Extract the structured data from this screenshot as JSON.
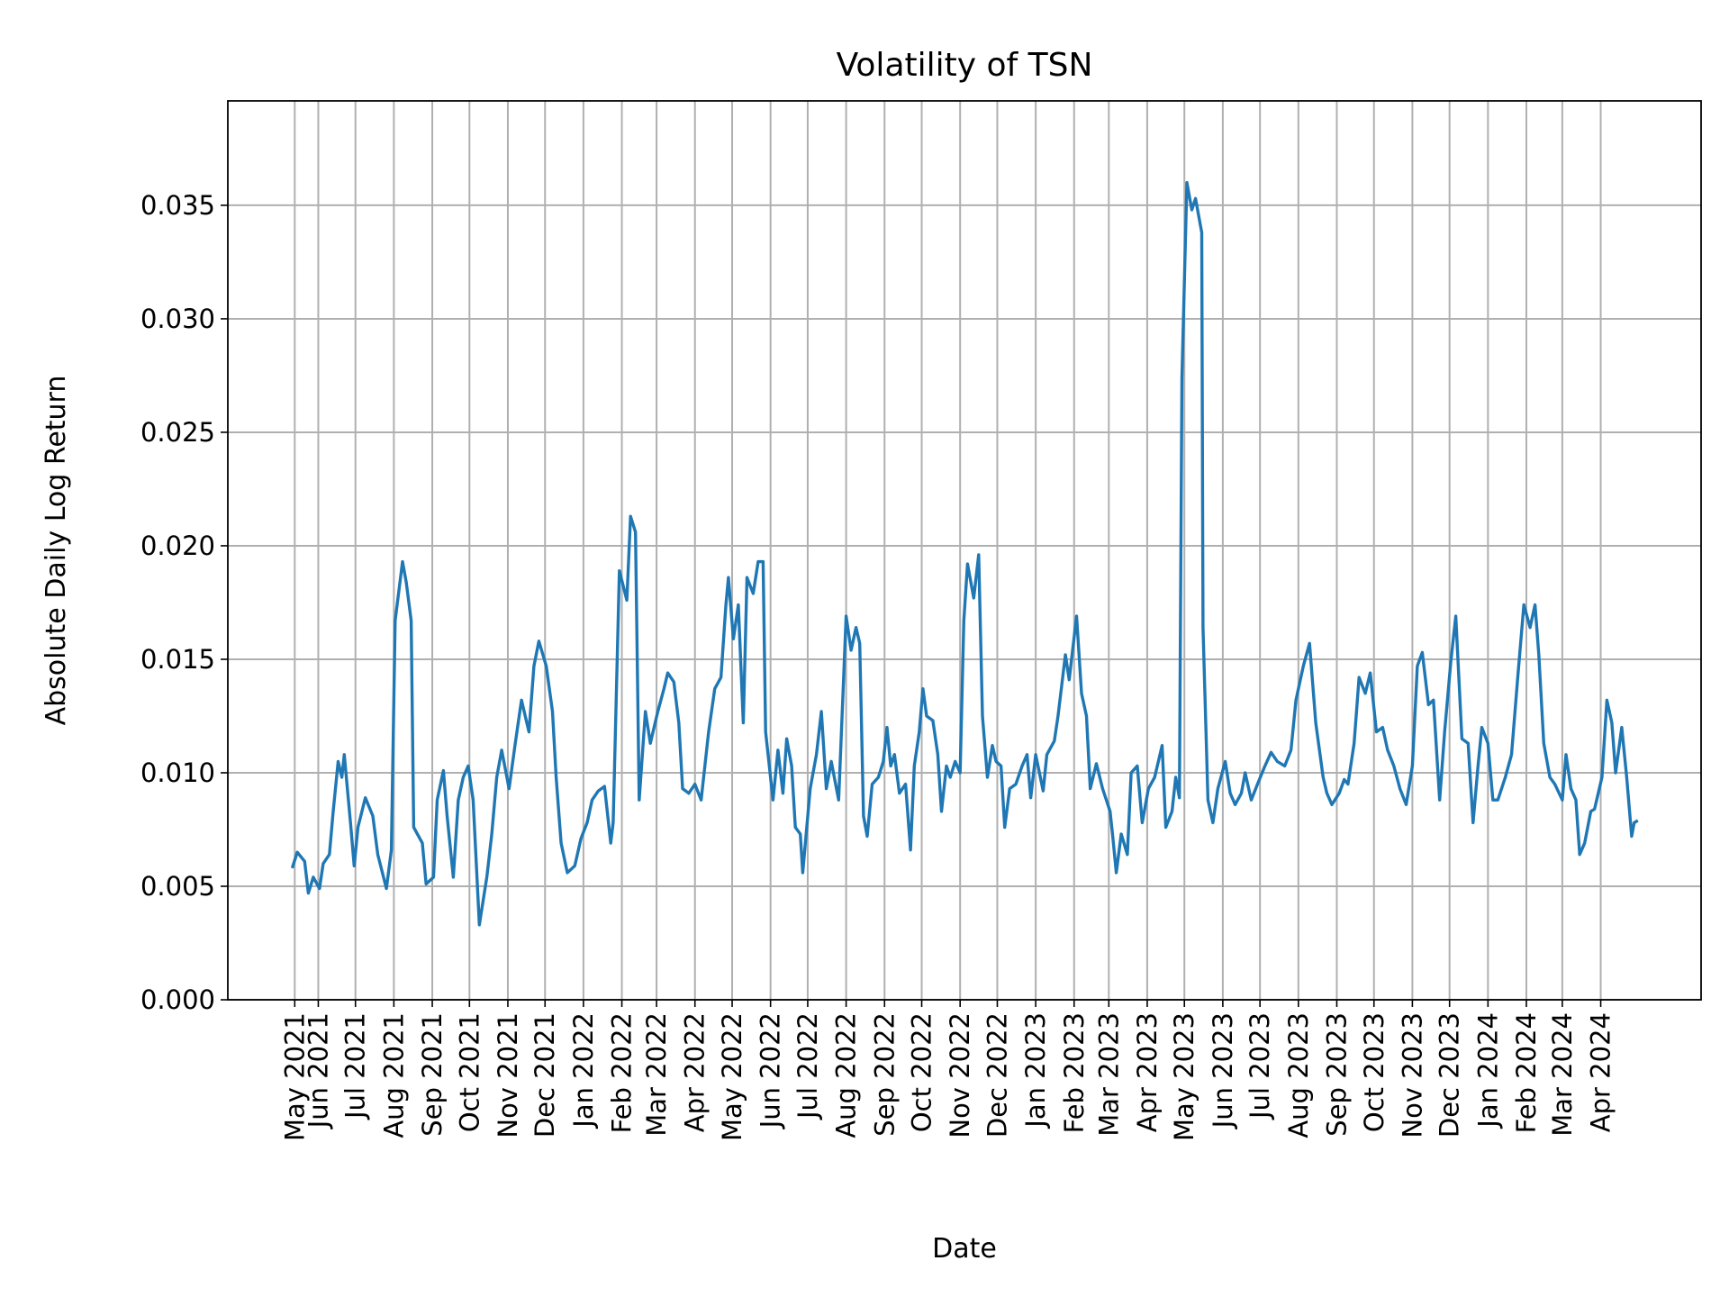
{
  "chart_data": {
    "type": "line",
    "title": "Volatility of TSN",
    "xlabel": "Date",
    "ylabel": "Absolute Daily Log Return",
    "xlim": [
      "2021-03-20",
      "2024-06-21"
    ],
    "ylim": [
      0,
      0.0396
    ],
    "grid": true,
    "line_color": "#1f77b4",
    "grid_color": "#b0b0b0",
    "y_ticks": [
      {
        "value": 0.0,
        "label": "0.000"
      },
      {
        "value": 0.005,
        "label": "0.005"
      },
      {
        "value": 0.01,
        "label": "0.010"
      },
      {
        "value": 0.015,
        "label": "0.015"
      },
      {
        "value": 0.02,
        "label": "0.020"
      },
      {
        "value": 0.025,
        "label": "0.025"
      },
      {
        "value": 0.03,
        "label": "0.030"
      },
      {
        "value": 0.035,
        "label": "0.035"
      }
    ],
    "x_ticks": [
      {
        "date": "2021-05-13",
        "label": "May 2021"
      },
      {
        "date": "2021-06-01",
        "label": "Jun 2021"
      },
      {
        "date": "2021-07-01",
        "label": "Jul 2021"
      },
      {
        "date": "2021-08-01",
        "label": "Aug 2021"
      },
      {
        "date": "2021-09-01",
        "label": "Sep 2021"
      },
      {
        "date": "2021-10-01",
        "label": "Oct 2021"
      },
      {
        "date": "2021-11-01",
        "label": "Nov 2021"
      },
      {
        "date": "2021-12-01",
        "label": "Dec 2021"
      },
      {
        "date": "2022-01-01",
        "label": "Jan 2022"
      },
      {
        "date": "2022-02-01",
        "label": "Feb 2022"
      },
      {
        "date": "2022-03-01",
        "label": "Mar 2022"
      },
      {
        "date": "2022-04-01",
        "label": "Apr 2022"
      },
      {
        "date": "2022-05-01",
        "label": "May 2022"
      },
      {
        "date": "2022-06-01",
        "label": "Jun 2022"
      },
      {
        "date": "2022-07-01",
        "label": "Jul 2022"
      },
      {
        "date": "2022-08-01",
        "label": "Aug 2022"
      },
      {
        "date": "2022-09-01",
        "label": "Sep 2022"
      },
      {
        "date": "2022-10-01",
        "label": "Oct 2022"
      },
      {
        "date": "2022-11-01",
        "label": "Nov 2022"
      },
      {
        "date": "2022-12-01",
        "label": "Dec 2022"
      },
      {
        "date": "2023-01-01",
        "label": "Jan 2023"
      },
      {
        "date": "2023-02-01",
        "label": "Feb 2023"
      },
      {
        "date": "2023-03-01",
        "label": "Mar 2023"
      },
      {
        "date": "2023-04-01",
        "label": "Apr 2023"
      },
      {
        "date": "2023-05-01",
        "label": "May 2023"
      },
      {
        "date": "2023-06-01",
        "label": "Jun 2023"
      },
      {
        "date": "2023-07-01",
        "label": "Jul 2023"
      },
      {
        "date": "2023-08-01",
        "label": "Aug 2023"
      },
      {
        "date": "2023-09-01",
        "label": "Sep 2023"
      },
      {
        "date": "2023-10-01",
        "label": "Oct 2023"
      },
      {
        "date": "2023-11-01",
        "label": "Nov 2023"
      },
      {
        "date": "2023-12-01",
        "label": "Dec 2023"
      },
      {
        "date": "2024-01-01",
        "label": "Jan 2024"
      },
      {
        "date": "2024-02-01",
        "label": "Feb 2024"
      },
      {
        "date": "2024-03-01",
        "label": "Mar 2024"
      },
      {
        "date": "2024-04-01",
        "label": "Apr 2024"
      }
    ],
    "series": [
      {
        "x": [
          "2021-05-11",
          "2021-05-15",
          "2021-05-21",
          "2021-05-24",
          "2021-05-28",
          "2021-06-02",
          "2021-06-05",
          "2021-06-10",
          "2021-06-13",
          "2021-06-17",
          "2021-06-20",
          "2021-06-22",
          "2021-06-27",
          "2021-06-30",
          "2021-07-03",
          "2021-07-09",
          "2021-07-15",
          "2021-07-19",
          "2021-07-26",
          "2021-07-30",
          "2021-08-02",
          "2021-08-08",
          "2021-08-11",
          "2021-08-15",
          "2021-08-17",
          "2021-08-24",
          "2021-08-27",
          "2021-09-02",
          "2021-09-05",
          "2021-09-10",
          "2021-09-13",
          "2021-09-18",
          "2021-09-22",
          "2021-09-26",
          "2021-09-30",
          "2021-10-04",
          "2021-10-09",
          "2021-10-15",
          "2021-10-19",
          "2021-10-23",
          "2021-10-27",
          "2021-11-02",
          "2021-11-07",
          "2021-11-12",
          "2021-11-18",
          "2021-11-22",
          "2021-11-26",
          "2021-12-02",
          "2021-12-07",
          "2021-12-10",
          "2021-12-14",
          "2021-12-19",
          "2021-12-25",
          "2021-12-30",
          "2022-01-04",
          "2022-01-08",
          "2022-01-13",
          "2022-01-18",
          "2022-01-23",
          "2022-01-25",
          "2022-01-30",
          "2022-02-05",
          "2022-02-08",
          "2022-02-12",
          "2022-02-15",
          "2022-02-20",
          "2022-02-24",
          "2022-03-02",
          "2022-03-07",
          "2022-03-10",
          "2022-03-15",
          "2022-03-19",
          "2022-03-22",
          "2022-03-27",
          "2022-04-01",
          "2022-04-06",
          "2022-04-12",
          "2022-04-17",
          "2022-04-22",
          "2022-04-26",
          "2022-04-28",
          "2022-05-02",
          "2022-05-06",
          "2022-05-10",
          "2022-05-13",
          "2022-05-18",
          "2022-05-22",
          "2022-05-26",
          "2022-05-28",
          "2022-06-03",
          "2022-06-07",
          "2022-06-11",
          "2022-06-14",
          "2022-06-18",
          "2022-06-21",
          "2022-06-25",
          "2022-06-27",
          "2022-07-03",
          "2022-07-08",
          "2022-07-12",
          "2022-07-16",
          "2022-07-20",
          "2022-07-26",
          "2022-08-01",
          "2022-08-05",
          "2022-08-09",
          "2022-08-12",
          "2022-08-15",
          "2022-08-18",
          "2022-08-22",
          "2022-08-27",
          "2022-08-31",
          "2022-09-03",
          "2022-09-06",
          "2022-09-09",
          "2022-09-13",
          "2022-09-18",
          "2022-09-22",
          "2022-09-25",
          "2022-09-29",
          "2022-10-02",
          "2022-10-05",
          "2022-10-10",
          "2022-10-14",
          "2022-10-17",
          "2022-10-21",
          "2022-10-24",
          "2022-10-28",
          "2022-11-01",
          "2022-11-04",
          "2022-11-07",
          "2022-11-12",
          "2022-11-16",
          "2022-11-19",
          "2022-11-23",
          "2022-11-27",
          "2022-11-30",
          "2022-12-04",
          "2022-12-07",
          "2022-12-11",
          "2022-12-16",
          "2022-12-21",
          "2022-12-25",
          "2022-12-28",
          "2023-01-01",
          "2023-01-07",
          "2023-01-10",
          "2023-01-16",
          "2023-01-19",
          "2023-01-25",
          "2023-01-28",
          "2023-02-03",
          "2023-02-07",
          "2023-02-11",
          "2023-02-14",
          "2023-02-19",
          "2023-02-24",
          "2023-03-02",
          "2023-03-04",
          "2023-03-07",
          "2023-03-11",
          "2023-03-16",
          "2023-03-19",
          "2023-03-24",
          "2023-03-28",
          "2023-04-02",
          "2023-04-07",
          "2023-04-13",
          "2023-04-16",
          "2023-04-21",
          "2023-04-24",
          "2023-04-27",
          "2023-04-29",
          "2023-05-03",
          "2023-05-07",
          "2023-05-10",
          "2023-05-15",
          "2023-05-16",
          "2023-05-20",
          "2023-05-24",
          "2023-05-28",
          "2023-06-03",
          "2023-06-07",
          "2023-06-11",
          "2023-06-16",
          "2023-06-19",
          "2023-06-24",
          "2023-06-29",
          "2023-07-05",
          "2023-07-10",
          "2023-07-15",
          "2023-07-21",
          "2023-07-26",
          "2023-07-30",
          "2023-08-05",
          "2023-08-10",
          "2023-08-15",
          "2023-08-21",
          "2023-08-24",
          "2023-08-28",
          "2023-09-03",
          "2023-09-07",
          "2023-09-10",
          "2023-09-15",
          "2023-09-19",
          "2023-09-24",
          "2023-09-28",
          "2023-10-03",
          "2023-10-08",
          "2023-10-12",
          "2023-10-17",
          "2023-10-22",
          "2023-10-27",
          "2023-11-01",
          "2023-11-05",
          "2023-11-09",
          "2023-11-14",
          "2023-11-18",
          "2023-11-23",
          "2023-11-27",
          "2023-12-02",
          "2023-12-06",
          "2023-12-11",
          "2023-12-16",
          "2023-12-20",
          "2023-12-24",
          "2023-12-27",
          "2024-01-01",
          "2024-01-05",
          "2024-01-09",
          "2024-01-15",
          "2024-01-20",
          "2024-01-25",
          "2024-01-30",
          "2024-02-04",
          "2024-02-08",
          "2024-02-11",
          "2024-02-15",
          "2024-02-20",
          "2024-02-24",
          "2024-03-01",
          "2024-03-04",
          "2024-03-08",
          "2024-03-12",
          "2024-03-15",
          "2024-03-19",
          "2024-03-24",
          "2024-03-27",
          "2024-04-02",
          "2024-04-06",
          "2024-04-10",
          "2024-04-13",
          "2024-04-18",
          "2024-04-22",
          "2024-04-26",
          "2024-04-28",
          "2024-05-01"
        ],
        "y": [
          0.0058,
          0.0065,
          0.0061,
          0.0047,
          0.0054,
          0.0049,
          0.006,
          0.0064,
          0.0083,
          0.0105,
          0.0098,
          0.0108,
          0.0078,
          0.0059,
          0.0076,
          0.0089,
          0.0081,
          0.0064,
          0.0049,
          0.0066,
          0.0167,
          0.0193,
          0.0184,
          0.0167,
          0.0076,
          0.0069,
          0.0051,
          0.0054,
          0.0088,
          0.0101,
          0.0081,
          0.0054,
          0.0088,
          0.0098,
          0.0103,
          0.0088,
          0.0033,
          0.0054,
          0.0073,
          0.0098,
          0.011,
          0.0093,
          0.0113,
          0.0132,
          0.0118,
          0.0147,
          0.0158,
          0.0147,
          0.0127,
          0.0098,
          0.0069,
          0.0056,
          0.0059,
          0.0071,
          0.0078,
          0.0088,
          0.0092,
          0.0094,
          0.0069,
          0.0078,
          0.0189,
          0.0176,
          0.0213,
          0.0206,
          0.0088,
          0.0127,
          0.0113,
          0.0127,
          0.0137,
          0.0144,
          0.014,
          0.0122,
          0.0093,
          0.0091,
          0.0095,
          0.0088,
          0.0118,
          0.0137,
          0.0142,
          0.0174,
          0.0186,
          0.0159,
          0.0174,
          0.0122,
          0.0186,
          0.0179,
          0.0193,
          0.0193,
          0.0118,
          0.0088,
          0.011,
          0.0091,
          0.0115,
          0.0103,
          0.0076,
          0.0073,
          0.0056,
          0.0093,
          0.0108,
          0.0127,
          0.0093,
          0.0105,
          0.0088,
          0.0169,
          0.0154,
          0.0164,
          0.0157,
          0.0081,
          0.0072,
          0.0095,
          0.0098,
          0.0105,
          0.012,
          0.0103,
          0.0108,
          0.0091,
          0.0095,
          0.0066,
          0.0103,
          0.0118,
          0.0137,
          0.0125,
          0.0123,
          0.0108,
          0.0083,
          0.0103,
          0.0098,
          0.0105,
          0.01,
          0.0167,
          0.0192,
          0.0177,
          0.0196,
          0.0125,
          0.0098,
          0.0112,
          0.0105,
          0.0103,
          0.0076,
          0.0093,
          0.0095,
          0.0103,
          0.0108,
          0.0089,
          0.0108,
          0.0092,
          0.0108,
          0.0114,
          0.0125,
          0.0152,
          0.0141,
          0.0169,
          0.0135,
          0.0125,
          0.0093,
          0.0104,
          0.0093,
          0.0083,
          0.0073,
          0.0056,
          0.0073,
          0.0064,
          0.01,
          0.0103,
          0.0078,
          0.0093,
          0.0098,
          0.0112,
          0.0076,
          0.0083,
          0.0098,
          0.0089,
          0.0274,
          0.036,
          0.0348,
          0.0353,
          0.0338,
          0.0164,
          0.0088,
          0.0078,
          0.0093,
          0.0105,
          0.0091,
          0.0086,
          0.0091,
          0.01,
          0.0088,
          0.0095,
          0.0103,
          0.0109,
          0.0105,
          0.0103,
          0.011,
          0.0132,
          0.0147,
          0.0157,
          0.0122,
          0.0098,
          0.0091,
          0.0086,
          0.0091,
          0.0097,
          0.0095,
          0.0113,
          0.0142,
          0.0135,
          0.0144,
          0.0118,
          0.012,
          0.011,
          0.0103,
          0.0093,
          0.0086,
          0.0103,
          0.0147,
          0.0153,
          0.013,
          0.0132,
          0.0088,
          0.0118,
          0.0149,
          0.0169,
          0.0115,
          0.0113,
          0.0078,
          0.0103,
          0.012,
          0.0113,
          0.0088,
          0.0088,
          0.0098,
          0.0108,
          0.0142,
          0.0174,
          0.0164,
          0.0174,
          0.0152,
          0.0113,
          0.0098,
          0.0095,
          0.0088,
          0.0108,
          0.0093,
          0.0088,
          0.0064,
          0.0069,
          0.0083,
          0.0084,
          0.0098,
          0.0132,
          0.0122,
          0.01,
          0.012,
          0.0098,
          0.0072,
          0.0078,
          0.0079
        ]
      }
    ]
  }
}
